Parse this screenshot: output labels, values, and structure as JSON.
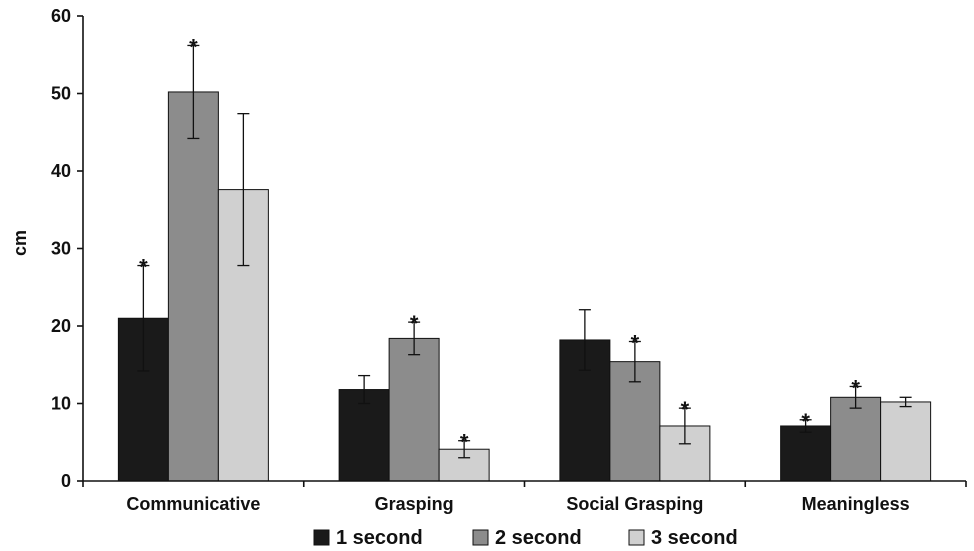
{
  "chart_data": {
    "type": "bar",
    "categories": [
      "Communicative",
      "Grasping",
      "Social Grasping",
      "Meaningless"
    ],
    "series": [
      {
        "name": "1 second",
        "color": "#1a1a1a",
        "values": [
          21.0,
          11.8,
          18.2,
          7.1
        ],
        "errors": [
          6.8,
          1.8,
          3.9,
          0.8
        ],
        "significant": [
          true,
          false,
          false,
          true
        ]
      },
      {
        "name": "2 second",
        "color": "#8c8c8c",
        "values": [
          50.2,
          18.4,
          15.4,
          10.8
        ],
        "errors": [
          6.0,
          2.1,
          2.6,
          1.4
        ],
        "significant": [
          true,
          true,
          true,
          true
        ]
      },
      {
        "name": "3 second",
        "color": "#d0d0d0",
        "values": [
          37.6,
          4.1,
          7.1,
          10.2
        ],
        "errors": [
          9.8,
          1.1,
          2.3,
          0.6
        ],
        "significant": [
          false,
          true,
          true,
          false
        ]
      }
    ],
    "significance_marker": "*",
    "xlabel": "",
    "ylabel": "cm",
    "ylim": [
      0,
      60
    ],
    "yticks": [
      0,
      10,
      20,
      30,
      40,
      50,
      60
    ],
    "grid": false,
    "legend_position": "bottom"
  }
}
